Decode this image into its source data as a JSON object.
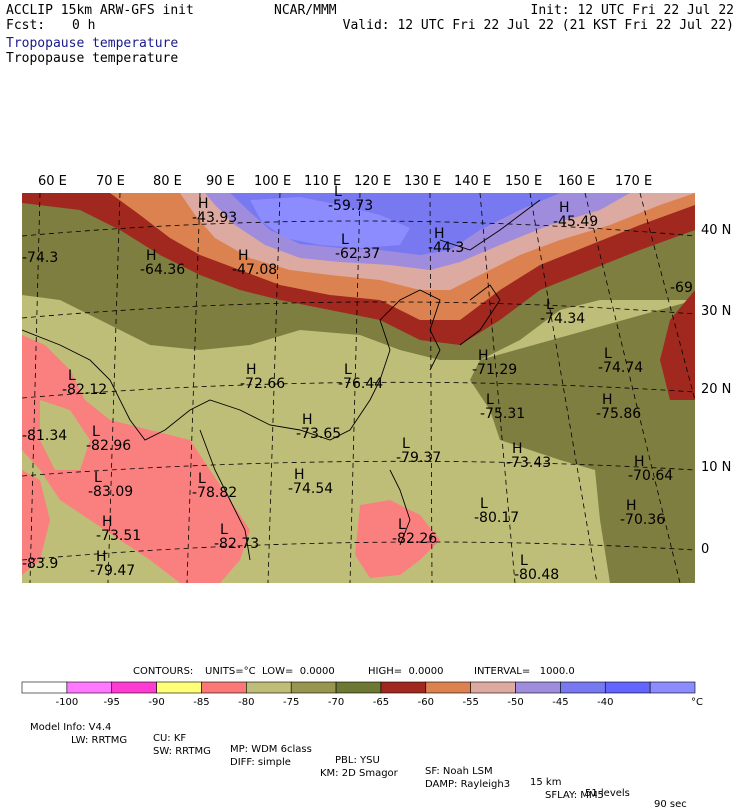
{
  "header": {
    "model_line": "ACCLIP 15km ARW-GFS init",
    "fcst_label": "Fcst:",
    "fcst_value": "0 h",
    "center": "NCAR/MMM",
    "init": "Init: 12 UTC Fri 22 Jul 22",
    "valid": "Valid: 12 UTC Fri 22 Jul 22 (21 KST Fri 22 Jul 22)",
    "field_1": "Tropopause temperature",
    "field_2": "Tropopause temperature"
  },
  "map": {
    "lon_labels": [
      "60 E",
      "70 E",
      "80 E",
      "90 E",
      "100 E",
      "110 E",
      "120 E",
      "130 E",
      "140 E",
      "150 E",
      "160 E",
      "170 E"
    ],
    "lat_labels": [
      "40 N",
      "30 N",
      "20 N",
      "10 N",
      "0"
    ],
    "extremes": [
      {
        "type": "H",
        "value": "-43.93"
      },
      {
        "type": "L",
        "value": "-59.73"
      },
      {
        "type": "H",
        "value": "-45.49"
      },
      {
        "type": "H",
        "value": "-44.3"
      },
      {
        "type": "L",
        "value": "-62.37"
      },
      {
        "type": "H",
        "value": "-47.08"
      },
      {
        "type": "H",
        "value": "-64.36"
      },
      {
        "type": "",
        "value": "-74.3"
      },
      {
        "type": "",
        "value": "-69"
      },
      {
        "type": "L",
        "value": "-74.34"
      },
      {
        "type": "L",
        "value": "-74.74"
      },
      {
        "type": "H",
        "value": "-72.66"
      },
      {
        "type": "L",
        "value": "-76.44"
      },
      {
        "type": "H",
        "value": "-71.29"
      },
      {
        "type": "L",
        "value": "-82.12"
      },
      {
        "type": "L",
        "value": "-75.31"
      },
      {
        "type": "H",
        "value": "-75.86"
      },
      {
        "type": "",
        "value": "-81.34"
      },
      {
        "type": "H",
        "value": "-73.65"
      },
      {
        "type": "L",
        "value": "-82.96"
      },
      {
        "type": "L",
        "value": "-79.37"
      },
      {
        "type": "H",
        "value": "-73.43"
      },
      {
        "type": "H",
        "value": "-70.64"
      },
      {
        "type": "L",
        "value": "-83.09"
      },
      {
        "type": "L",
        "value": "-78.82"
      },
      {
        "type": "H",
        "value": "-74.54"
      },
      {
        "type": "H",
        "value": "-70.36"
      },
      {
        "type": "L",
        "value": "-80.17"
      },
      {
        "type": "H",
        "value": "-73.51"
      },
      {
        "type": "L",
        "value": "-82.73"
      },
      {
        "type": "L",
        "value": "-82.26"
      },
      {
        "type": "",
        "value": "-83.9"
      },
      {
        "type": "H",
        "value": "-79.47"
      },
      {
        "type": "L",
        "value": "-80.48"
      }
    ]
  },
  "contours": {
    "label": "CONTOURS:",
    "units": "UNITS=°C",
    "low": "LOW=  0.0000",
    "high": "HIGH=  0.0000",
    "interval": "INTERVAL=   1000.0"
  },
  "colorbar": {
    "colors": [
      "#ffffff",
      "#ff78ff",
      "#ff3cd2",
      "#ffff78",
      "#fa7878",
      "#bebe78",
      "#969650",
      "#6e7832",
      "#a0281e",
      "#dc8250",
      "#dcaaa0",
      "#a08cdc",
      "#7878f0",
      "#6464ff",
      "#8c8cff"
    ],
    "labels": [
      "-100",
      "-95",
      "-90",
      "-85",
      "-80",
      "-75",
      "-70",
      "-65",
      "-60",
      "-55",
      "-50",
      "-45",
      "-40",
      "°C"
    ]
  },
  "model_info": {
    "row1": [
      "Model Info: V4.4",
      "CU: KF",
      "MP: WDM 6class",
      "PBL: YSU",
      "SF: Noah LSM",
      "15 km",
      "51 levels",
      "90 sec"
    ],
    "row2": [
      "LW: RRTMG",
      "SW: RRTMG",
      "DIFF: simple",
      "KM: 2D Smagor",
      "DAMP: Rayleigh3",
      "SFLAY: MM5"
    ]
  }
}
